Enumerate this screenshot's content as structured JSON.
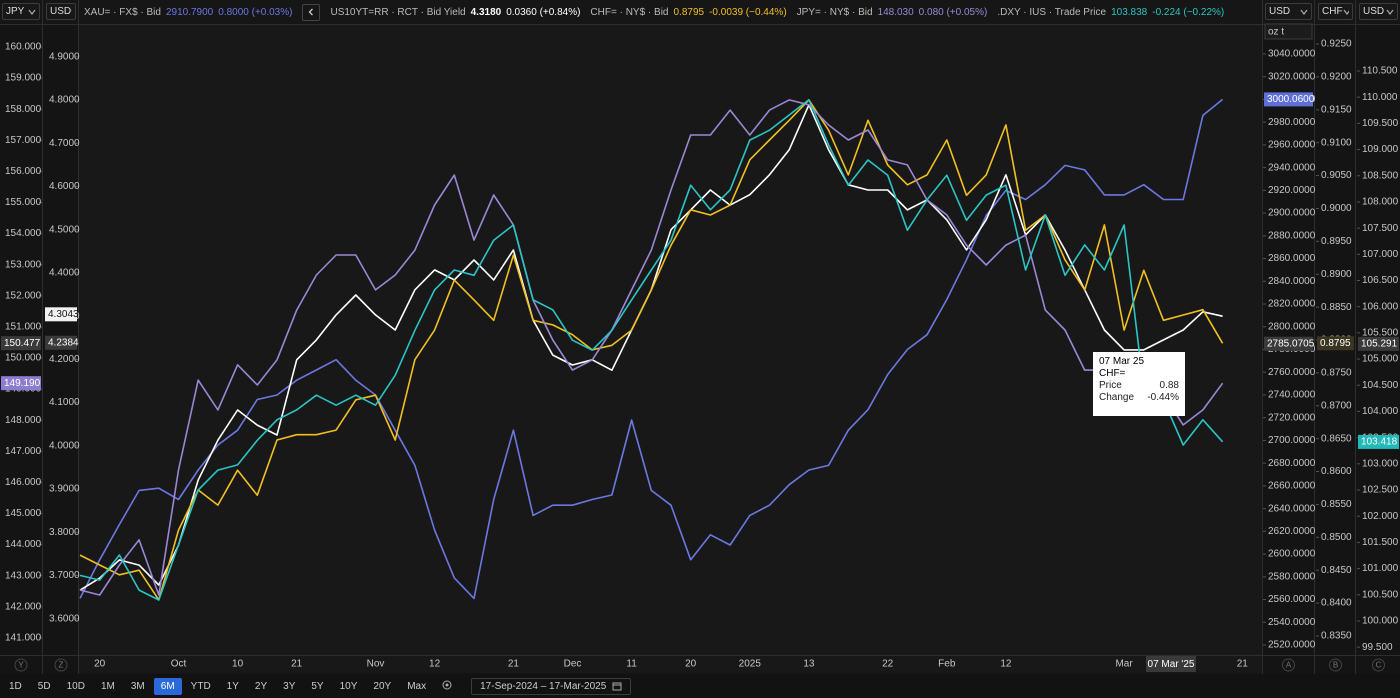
{
  "chart_data": {
    "type": "line",
    "categories": [
      null,
      "20",
      null,
      null,
      null,
      "Oct",
      null,
      null,
      "10",
      null,
      null,
      "21",
      null,
      null,
      null,
      "Nov",
      null,
      null,
      "12",
      null,
      null,
      null,
      "21",
      null,
      null,
      "Dec",
      null,
      null,
      "11",
      null,
      null,
      "20",
      null,
      null,
      "2025",
      null,
      null,
      "13",
      null,
      null,
      null,
      "22",
      null,
      null,
      "Feb",
      null,
      null,
      "12",
      null,
      null,
      null,
      null,
      null,
      "Mar",
      null,
      null,
      null,
      null,
      null,
      "21"
    ],
    "axes": [
      {
        "unit": "JPY",
        "badge": "Y",
        "ylim": [
          140.45,
          161.35
        ],
        "yticks": [
          {
            "value": 141,
            "label": "141.000"
          },
          {
            "value": 142,
            "label": "142.000"
          },
          {
            "value": 143,
            "label": "143.000"
          },
          {
            "value": 144,
            "label": "144.000"
          },
          {
            "value": 145,
            "label": "145.000"
          },
          {
            "value": 146,
            "label": "146.000"
          },
          {
            "value": 147,
            "label": "147.000"
          },
          {
            "value": 148,
            "label": "148.000"
          },
          {
            "value": 149,
            "label": "149.000"
          },
          {
            "value": 150,
            "label": "150.000"
          },
          {
            "value": 151,
            "label": "151.000"
          },
          {
            "value": 152,
            "label": "152.000"
          },
          {
            "value": 153,
            "label": "153.000"
          },
          {
            "value": 154,
            "label": "154.000"
          },
          {
            "value": 155,
            "label": "155.000"
          },
          {
            "value": 156,
            "label": "156.000"
          },
          {
            "value": 157,
            "label": "157.000"
          },
          {
            "value": 158,
            "label": "158.000"
          },
          {
            "value": 159,
            "label": "159.000"
          },
          {
            "value": 160,
            "label": "160.000"
          }
        ],
        "markers": [
          {
            "value": 150.477,
            "label": "150.477",
            "color": "#3a3a3a",
            "text_color": "#ffffff"
          },
          {
            "value": 149.19,
            "label": "149.190",
            "color": "#8e7cd0",
            "text_color": "#ffffff"
          }
        ]
      },
      {
        "unit": "USD",
        "badge": "Z",
        "ylim": [
          3.516,
          5.02
        ],
        "yticks": [
          {
            "value": 3.6,
            "label": "3.6000"
          },
          {
            "value": 3.7,
            "label": "3.7000"
          },
          {
            "value": 3.8,
            "label": "3.8000"
          },
          {
            "value": 3.9,
            "label": "3.9000"
          },
          {
            "value": 4.0,
            "label": "4.0000"
          },
          {
            "value": 4.1,
            "label": "4.1000"
          },
          {
            "value": 4.2,
            "label": "4.2000"
          },
          {
            "value": 4.3,
            "label": "4.3000"
          },
          {
            "value": 4.4,
            "label": "4.4000"
          },
          {
            "value": 4.5,
            "label": "4.5000"
          },
          {
            "value": 4.6,
            "label": "4.6000"
          },
          {
            "value": 4.7,
            "label": "4.7000"
          },
          {
            "value": 4.8,
            "label": "4.8000"
          },
          {
            "value": 4.9,
            "label": "4.9000"
          }
        ],
        "markers": [
          {
            "value": 4.3043,
            "label": "4.3043",
            "color": "#f2f2f2",
            "text_color": "#111111"
          },
          {
            "value": 4.2384,
            "label": "4.2384",
            "color": "#3a3a3a",
            "text_color": "#ffffff"
          }
        ]
      },
      {
        "unit": "USD",
        "sub_unit": "oz t",
        "badge": "A",
        "ylim": [
          2511.2,
          3083.1
        ],
        "yticks": [
          {
            "value": 2520,
            "label": "2520.0000"
          },
          {
            "value": 2540,
            "label": "2540.0000"
          },
          {
            "value": 2560,
            "label": "2560.0000"
          },
          {
            "value": 2580,
            "label": "2580.0000"
          },
          {
            "value": 2600,
            "label": "2600.0000"
          },
          {
            "value": 2620,
            "label": "2620.0000"
          },
          {
            "value": 2640,
            "label": "2640.0000"
          },
          {
            "value": 2660,
            "label": "2660.0000"
          },
          {
            "value": 2680,
            "label": "2680.0000"
          },
          {
            "value": 2700,
            "label": "2700.0000"
          },
          {
            "value": 2720,
            "label": "2720.0000"
          },
          {
            "value": 2740,
            "label": "2740.0000"
          },
          {
            "value": 2760,
            "label": "2760.0000"
          },
          {
            "value": 2780,
            "label": "2780.0000"
          },
          {
            "value": 2800,
            "label": "2800.0000"
          },
          {
            "value": 2820,
            "label": "2820.0000"
          },
          {
            "value": 2840,
            "label": "2840.0000"
          },
          {
            "value": 2860,
            "label": "2860.0000"
          },
          {
            "value": 2880,
            "label": "2880.0000"
          },
          {
            "value": 2900,
            "label": "2900.0000"
          },
          {
            "value": 2920,
            "label": "2920.0000"
          },
          {
            "value": 2940,
            "label": "2940.0000"
          },
          {
            "value": 2960,
            "label": "2960.0000"
          },
          {
            "value": 2980,
            "label": "2980.0000"
          },
          {
            "value": 3000,
            "label": "3000.0000"
          },
          {
            "value": 3020,
            "label": "3020.0000"
          },
          {
            "value": 3040,
            "label": "3040.0000"
          }
        ],
        "markers": [
          {
            "value": 3000.06,
            "label": "3000.0600",
            "color": "#5f6fd8",
            "text_color": "#ffffff"
          },
          {
            "value": 2785.0705,
            "label": "2785.0705",
            "color": "#3a3a3a",
            "text_color": "#ffffff"
          }
        ]
      },
      {
        "unit": "CHF",
        "badge": "B",
        "ylim": [
          0.83211,
          0.93093
        ],
        "yticks": [
          {
            "value": 0.835,
            "label": "0.8350"
          },
          {
            "value": 0.84,
            "label": "0.8400"
          },
          {
            "value": 0.845,
            "label": "0.8450"
          },
          {
            "value": 0.85,
            "label": "0.8500"
          },
          {
            "value": 0.855,
            "label": "0.8550"
          },
          {
            "value": 0.86,
            "label": "0.8600"
          },
          {
            "value": 0.865,
            "label": "0.8650"
          },
          {
            "value": 0.87,
            "label": "0.8700"
          },
          {
            "value": 0.875,
            "label": "0.8750"
          },
          {
            "value": 0.88,
            "label": "0.8800"
          },
          {
            "value": 0.885,
            "label": "0.8850"
          },
          {
            "value": 0.89,
            "label": "0.8900"
          },
          {
            "value": 0.895,
            "label": "0.8950"
          },
          {
            "value": 0.9,
            "label": "0.9000"
          },
          {
            "value": 0.905,
            "label": "0.9050"
          },
          {
            "value": 0.91,
            "label": "0.9100"
          },
          {
            "value": 0.915,
            "label": "0.9150"
          },
          {
            "value": 0.92,
            "label": "0.9200"
          },
          {
            "value": 0.925,
            "label": "0.9250"
          }
        ],
        "markers": [
          {
            "value": 0.8795,
            "label": "0.8795",
            "color": "#3a3420",
            "text_color": "#ffffff"
          }
        ]
      },
      {
        "unit": "USD",
        "badge": "C",
        "ylim": [
          99.35,
          111.76
        ],
        "yticks": [
          {
            "value": 99.5,
            "label": "99.500"
          },
          {
            "value": 100,
            "label": "100.000"
          },
          {
            "value": 100.5,
            "label": "100.500"
          },
          {
            "value": 101,
            "label": "101.000"
          },
          {
            "value": 101.5,
            "label": "101.500"
          },
          {
            "value": 102,
            "label": "102.000"
          },
          {
            "value": 102.5,
            "label": "102.500"
          },
          {
            "value": 103,
            "label": "103.000"
          },
          {
            "value": 103.5,
            "label": "103.500"
          },
          {
            "value": 104,
            "label": "104.000"
          },
          {
            "value": 104.5,
            "label": "104.500"
          },
          {
            "value": 105,
            "label": "105.000"
          },
          {
            "value": 105.5,
            "label": "105.500"
          },
          {
            "value": 106,
            "label": "106.000"
          },
          {
            "value": 106.5,
            "label": "106.500"
          },
          {
            "value": 107,
            "label": "107.000"
          },
          {
            "value": 107.5,
            "label": "107.500"
          },
          {
            "value": 108,
            "label": "108.000"
          },
          {
            "value": 108.5,
            "label": "108.500"
          },
          {
            "value": 109,
            "label": "109.000"
          },
          {
            "value": 109.5,
            "label": "109.500"
          },
          {
            "value": 110,
            "label": "110.000"
          },
          {
            "value": 110.5,
            "label": "110.500"
          }
        ],
        "markers": [
          {
            "value": 105.291,
            "label": "105.291",
            "color": "#3a3a3a",
            "text_color": "#ffffff"
          },
          {
            "value": 103.418,
            "label": "103.418",
            "color": "#20b8b8",
            "text_color": "#ffffff"
          }
        ]
      }
    ],
    "series": [
      {
        "name": "XAU= · FX$ · Bid",
        "quote": "2910.7900",
        "change": "0.8000 (+0.03%)",
        "color": "#6c78e0",
        "axis": 2,
        "values": [
          2561,
          2595,
          2626,
          2656,
          2658,
          2648,
          2674,
          2696,
          2709,
          2736,
          2740,
          2753,
          2762,
          2771,
          2753,
          2740,
          2709,
          2678,
          2621,
          2579,
          2561,
          2648,
          2709,
          2634,
          2643,
          2643,
          2648,
          2652,
          2718,
          2656,
          2643,
          2595,
          2617,
          2608,
          2634,
          2643,
          2661,
          2674,
          2678,
          2709,
          2727,
          2758,
          2780,
          2793,
          2824,
          2859,
          2898,
          2920,
          2912,
          2925,
          2942,
          2938,
          2916,
          2916,
          2925,
          2912,
          2912,
          2986,
          3000.06,
          null
        ]
      },
      {
        "name": "US10YT=RR · RCT · Bid Yield",
        "quote": "4.3180",
        "change": "0.0360 (+0.84%)",
        "color": "#ffffff",
        "axis": 1,
        "values": [
          3.666,
          3.694,
          3.736,
          3.724,
          3.678,
          3.77,
          3.921,
          4.013,
          4.083,
          4.048,
          4.025,
          4.199,
          4.245,
          4.303,
          4.349,
          4.303,
          4.268,
          4.361,
          4.407,
          4.384,
          4.43,
          4.384,
          4.453,
          4.291,
          4.21,
          4.187,
          4.199,
          4.175,
          4.268,
          4.361,
          4.5,
          4.546,
          4.592,
          4.557,
          4.581,
          4.627,
          4.685,
          4.789,
          4.685,
          4.604,
          4.592,
          4.592,
          4.546,
          4.569,
          4.523,
          4.453,
          4.523,
          4.627,
          4.488,
          4.534,
          4.453,
          4.361,
          4.268,
          4.222,
          4.222,
          4.245,
          4.268,
          4.31,
          4.3,
          null
        ]
      },
      {
        "name": "CHF= · NY$ · Bid",
        "quote": "0.8795",
        "change": "-0.0039 (−0.44%)",
        "color": "#f0c020",
        "axis": 3,
        "values": [
          0.8473,
          0.8458,
          0.8443,
          0.845,
          0.8405,
          0.8511,
          0.8572,
          0.8549,
          0.8602,
          0.8564,
          0.8648,
          0.8656,
          0.8656,
          0.8663,
          0.8709,
          0.8716,
          0.8648,
          0.877,
          0.8815,
          0.8891,
          0.8861,
          0.883,
          0.8929,
          0.883,
          0.8823,
          0.8808,
          0.8785,
          0.8792,
          0.8815,
          0.8876,
          0.8944,
          0.8998,
          0.899,
          0.9005,
          0.9074,
          0.9104,
          0.9134,
          0.9165,
          0.9119,
          0.9051,
          0.9134,
          0.9066,
          0.9036,
          0.9051,
          0.9104,
          0.902,
          0.9051,
          0.9127,
          0.8967,
          0.899,
          0.8922,
          0.8876,
          0.8975,
          0.8815,
          0.8906,
          0.883,
          0.8838,
          0.8846,
          0.8795,
          null
        ]
      },
      {
        "name": "JPY= · NY$ · Bid",
        "quote": "148.030",
        "change": "0.080 (+0.05%)",
        "color": "#9b87d6",
        "axis": 0,
        "values": [
          142.54,
          142.38,
          143.34,
          144.15,
          142.38,
          146.4,
          149.29,
          148.33,
          149.78,
          149.13,
          149.94,
          151.54,
          152.67,
          153.31,
          153.31,
          152.19,
          152.67,
          153.47,
          154.92,
          155.88,
          153.79,
          155.24,
          154.28,
          151.86,
          150.58,
          149.61,
          149.94,
          150.9,
          152.19,
          153.47,
          155.4,
          157.17,
          157.17,
          157.97,
          157.17,
          157.97,
          158.3,
          158.14,
          157.49,
          157.01,
          157.33,
          156.37,
          156.21,
          155.08,
          154.6,
          153.63,
          152.99,
          153.63,
          153.95,
          151.54,
          150.9,
          149.61,
          149.61,
          150.1,
          149.29,
          148.81,
          147.85,
          148.33,
          149.19,
          null
        ]
      },
      {
        "name": ".DXY · IUS · Trade Price",
        "quote": "103.838",
        "change": "-0.224 (−0.22%)",
        "color": "#2cc4c4",
        "axis": 4,
        "values": [
          100.87,
          100.78,
          101.26,
          100.59,
          100.4,
          101.45,
          102.5,
          102.88,
          102.98,
          103.45,
          103.84,
          104.03,
          104.31,
          104.12,
          104.31,
          104.12,
          104.69,
          105.55,
          106.32,
          106.7,
          106.6,
          107.27,
          107.56,
          106.13,
          105.94,
          105.36,
          105.17,
          105.55,
          106.13,
          106.7,
          107.27,
          108.32,
          107.85,
          108.23,
          109.18,
          109.37,
          109.66,
          109.95,
          109.09,
          108.32,
          108.8,
          108.51,
          107.46,
          108.04,
          108.51,
          107.65,
          108.13,
          108.32,
          106.7,
          107.75,
          106.6,
          107.18,
          106.7,
          107.56,
          104.41,
          104.22,
          103.36,
          103.84,
          103.42,
          null
        ]
      }
    ],
    "tooltip": {
      "date": "07 Mar 25",
      "name": "CHF=",
      "rows": [
        [
          "Price",
          "0.88"
        ],
        [
          "Change",
          "-0.44%"
        ]
      ]
    },
    "crosshair_label": "07 Mar '25"
  },
  "toolbar": {
    "buttons": [
      {
        "label": "1D",
        "active": false
      },
      {
        "label": "5D",
        "active": false
      },
      {
        "label": "10D",
        "active": false
      },
      {
        "label": "1M",
        "active": false
      },
      {
        "label": "3M",
        "active": false
      },
      {
        "label": "6M",
        "active": true
      },
      {
        "label": "YTD",
        "active": false
      },
      {
        "label": "1Y",
        "active": false
      },
      {
        "label": "2Y",
        "active": false
      },
      {
        "label": "3Y",
        "active": false
      },
      {
        "label": "5Y",
        "active": false
      },
      {
        "label": "10Y",
        "active": false
      },
      {
        "label": "20Y",
        "active": false
      },
      {
        "label": "Max",
        "active": false
      }
    ],
    "date_range": "17-Sep-2024  –  17-Mar-2025"
  }
}
